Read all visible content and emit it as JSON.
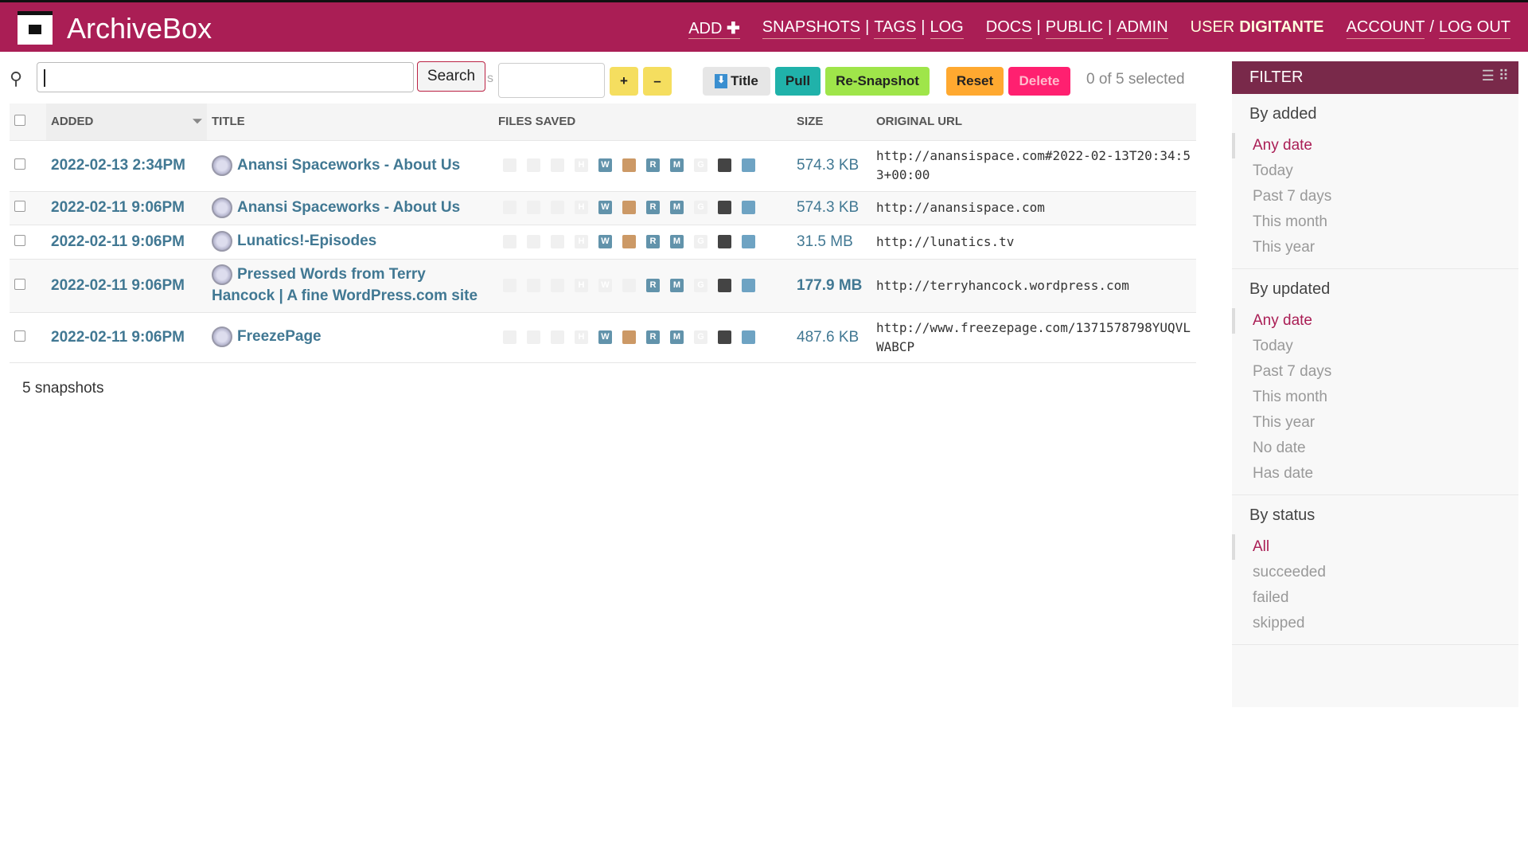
{
  "header": {
    "brand": "ArchiveBox",
    "add": "ADD",
    "add_icon": "plus",
    "snapshots": "SNAPSHOTS",
    "tags": "TAGS",
    "log": "LOG",
    "docs": "DOCS",
    "public": "PUBLIC",
    "admin": "ADMIN",
    "user_prefix": "USER",
    "username": "DIGITANTE",
    "account": "ACCOUNT",
    "logout": "LOG OUT",
    "sep": "|",
    "slash": "/"
  },
  "toolbar": {
    "search_value": "",
    "search_button": "Search",
    "suffix": "s",
    "tag_value": "",
    "plus": "+",
    "minus": "–",
    "title": "Title",
    "pull": "Pull",
    "resnapshot": "Re-Snapshot",
    "reset": "Reset",
    "delete": "Delete",
    "selected": "0 of 5 selected"
  },
  "table": {
    "columns": [
      "ADDED",
      "TITLE",
      "FILES SAVED",
      "SIZE",
      "ORIGINAL URL"
    ],
    "rows": [
      {
        "added": "2022-02-13 2:34PM",
        "title": "Anansi Spaceworks - About Us",
        "size": "574.3 KB",
        "url": "http://anansispace.com#2022-02-13T20:34:53+00:00"
      },
      {
        "added": "2022-02-11 9:06PM",
        "title": "Anansi Spaceworks - About Us",
        "size": "574.3 KB",
        "url": "http://anansispace.com"
      },
      {
        "added": "2022-02-11 9:06PM",
        "title": "Lunatics!-Episodes",
        "size": "31.5 MB",
        "url": "http://lunatics.tv"
      },
      {
        "added": "2022-02-11 9:06PM",
        "title": "Pressed Words from Terry Hancock | A fine WordPress.com site",
        "size": "177.9 MB",
        "url": "http://terryhancock.wordpress.com"
      },
      {
        "added": "2022-02-11 9:06PM",
        "title": "FreezePage",
        "size": "487.6 KB",
        "url": "http://www.freezepage.com/1371578798YUQVLWABCP"
      }
    ]
  },
  "footer": "5 snapshots",
  "filter": {
    "title": "FILTER",
    "sections": [
      {
        "title": "By added",
        "items": [
          "Any date",
          "Today",
          "Past 7 days",
          "This month",
          "This year"
        ]
      },
      {
        "title": "By updated",
        "items": [
          "Any date",
          "Today",
          "Past 7 days",
          "This month",
          "This year",
          "No date",
          "Has date"
        ]
      },
      {
        "title": "By status",
        "items": [
          "All",
          "succeeded",
          "failed",
          "skipped"
        ]
      }
    ]
  },
  "colors": {
    "brand": "#aa1e55",
    "filter_header": "#79294a",
    "link": "#417893",
    "pull": "#20b2aa",
    "resnapshot": "#9fe54a",
    "reset": "#ffa930",
    "delete": "#ff2070",
    "plusminus": "#f5de5f"
  }
}
